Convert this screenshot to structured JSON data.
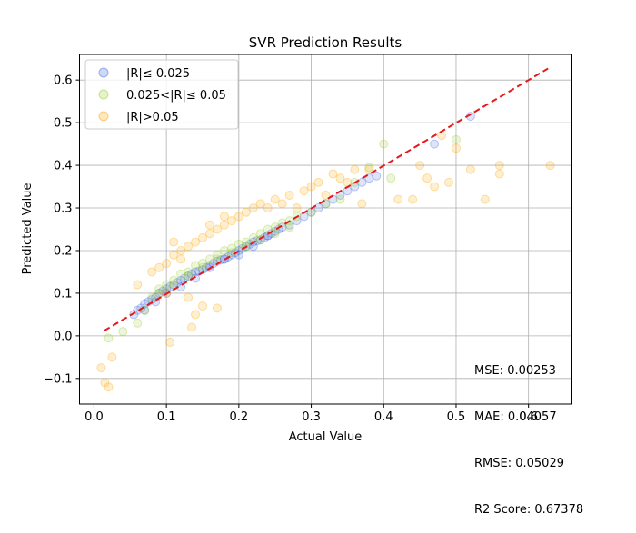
{
  "chart_data": {
    "type": "scatter",
    "title": "SVR Prediction Results",
    "xlabel": "Actual Value",
    "ylabel": "Predicted Value",
    "xlim": [
      -0.02,
      0.66
    ],
    "ylim": [
      -0.16,
      0.66
    ],
    "xticks": [
      "0.0",
      "0.1",
      "0.2",
      "0.3",
      "0.4",
      "0.5",
      "0.6"
    ],
    "yticks": [
      "−0.1",
      "0.0",
      "0.1",
      "0.2",
      "0.3",
      "0.4",
      "0.5",
      "0.6"
    ],
    "xtick_values": [
      0.0,
      0.1,
      0.2,
      0.3,
      0.4,
      0.5,
      0.6
    ],
    "ytick_values": [
      -0.1,
      0.0,
      0.1,
      0.2,
      0.3,
      0.4,
      0.5,
      0.6
    ],
    "grid": true,
    "legend_position": "top-left",
    "reference_line": {
      "style": "dashed",
      "color": "#e41a1c",
      "x": [
        0.014,
        0.627
      ],
      "y": [
        0.012,
        0.627
      ]
    },
    "series": [
      {
        "name": "|R|≤ 0.025",
        "color": "#4169e1",
        "x": [
          0.055,
          0.06,
          0.065,
          0.07,
          0.075,
          0.08,
          0.085,
          0.09,
          0.095,
          0.1,
          0.105,
          0.11,
          0.115,
          0.12,
          0.125,
          0.13,
          0.135,
          0.14,
          0.145,
          0.15,
          0.155,
          0.16,
          0.165,
          0.17,
          0.175,
          0.18,
          0.185,
          0.19,
          0.195,
          0.2,
          0.205,
          0.21,
          0.215,
          0.22,
          0.225,
          0.23,
          0.235,
          0.24,
          0.245,
          0.25,
          0.255,
          0.26,
          0.27,
          0.28,
          0.29,
          0.3,
          0.31,
          0.32,
          0.33,
          0.34,
          0.35,
          0.36,
          0.37,
          0.38,
          0.39,
          0.47,
          0.52,
          0.07,
          0.085,
          0.1,
          0.12,
          0.14,
          0.16,
          0.18,
          0.2,
          0.22,
          0.24
        ],
        "y": [
          0.05,
          0.06,
          0.065,
          0.075,
          0.08,
          0.085,
          0.09,
          0.1,
          0.105,
          0.11,
          0.115,
          0.12,
          0.125,
          0.13,
          0.135,
          0.14,
          0.145,
          0.15,
          0.152,
          0.155,
          0.16,
          0.165,
          0.17,
          0.175,
          0.178,
          0.18,
          0.185,
          0.19,
          0.195,
          0.2,
          0.205,
          0.21,
          0.215,
          0.22,
          0.223,
          0.225,
          0.23,
          0.235,
          0.24,
          0.245,
          0.25,
          0.255,
          0.26,
          0.27,
          0.28,
          0.29,
          0.3,
          0.31,
          0.32,
          0.33,
          0.34,
          0.35,
          0.36,
          0.37,
          0.375,
          0.45,
          0.515,
          0.06,
          0.08,
          0.1,
          0.115,
          0.135,
          0.16,
          0.18,
          0.19,
          0.21,
          0.235
        ]
      },
      {
        "name": "0.025<|R|≤ 0.05",
        "color": "#9acd32",
        "x": [
          0.02,
          0.04,
          0.06,
          0.07,
          0.08,
          0.09,
          0.1,
          0.11,
          0.12,
          0.13,
          0.14,
          0.15,
          0.16,
          0.17,
          0.18,
          0.19,
          0.2,
          0.21,
          0.22,
          0.23,
          0.24,
          0.25,
          0.26,
          0.27,
          0.28,
          0.3,
          0.32,
          0.34,
          0.36,
          0.38,
          0.4,
          0.41,
          0.5,
          0.09,
          0.11,
          0.13,
          0.15,
          0.17,
          0.19,
          0.21,
          0.23,
          0.25,
          0.27
        ],
        "y": [
          -0.005,
          0.01,
          0.03,
          0.06,
          0.09,
          0.11,
          0.12,
          0.13,
          0.145,
          0.15,
          0.165,
          0.17,
          0.18,
          0.19,
          0.2,
          0.205,
          0.215,
          0.22,
          0.23,
          0.24,
          0.25,
          0.255,
          0.265,
          0.27,
          0.28,
          0.29,
          0.31,
          0.32,
          0.36,
          0.395,
          0.45,
          0.37,
          0.46,
          0.1,
          0.12,
          0.14,
          0.16,
          0.18,
          0.195,
          0.21,
          0.225,
          0.24,
          0.255
        ]
      },
      {
        "name": "|R|>0.05",
        "color": "#ffa500",
        "x": [
          0.01,
          0.015,
          0.02,
          0.025,
          0.06,
          0.08,
          0.09,
          0.1,
          0.11,
          0.12,
          0.13,
          0.14,
          0.15,
          0.16,
          0.17,
          0.18,
          0.19,
          0.2,
          0.21,
          0.22,
          0.23,
          0.24,
          0.25,
          0.26,
          0.27,
          0.28,
          0.29,
          0.3,
          0.31,
          0.32,
          0.33,
          0.34,
          0.35,
          0.36,
          0.37,
          0.38,
          0.42,
          0.44,
          0.45,
          0.46,
          0.47,
          0.48,
          0.49,
          0.5,
          0.52,
          0.54,
          0.56,
          0.56,
          0.63,
          0.1,
          0.11,
          0.13,
          0.15,
          0.12,
          0.17,
          0.14,
          0.16,
          0.18,
          0.105,
          0.135
        ],
        "y": [
          -0.075,
          -0.11,
          -0.12,
          -0.05,
          0.12,
          0.15,
          0.16,
          0.17,
          0.19,
          0.2,
          0.21,
          0.22,
          0.23,
          0.24,
          0.25,
          0.26,
          0.27,
          0.28,
          0.29,
          0.3,
          0.31,
          0.3,
          0.32,
          0.31,
          0.33,
          0.3,
          0.34,
          0.35,
          0.36,
          0.33,
          0.38,
          0.37,
          0.36,
          0.39,
          0.31,
          0.39,
          0.32,
          0.32,
          0.4,
          0.37,
          0.35,
          0.47,
          0.36,
          0.44,
          0.39,
          0.32,
          0.38,
          0.4,
          0.4,
          0.1,
          0.22,
          0.09,
          0.07,
          0.18,
          0.065,
          0.05,
          0.26,
          0.28,
          -0.015,
          0.02
        ]
      }
    ],
    "annotations": {
      "mse": "MSE: 0.00253",
      "mae": "MAE: 0.04057",
      "rmse": "RMSE: 0.05029",
      "r2": "R2 Score: 0.67378"
    }
  }
}
